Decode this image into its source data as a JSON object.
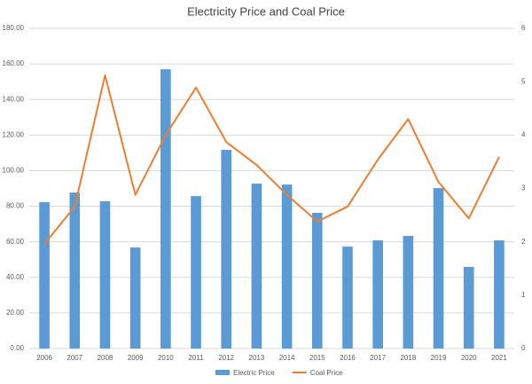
{
  "chart_data": {
    "type": "combo",
    "title": "Electricity Price and Coal Price",
    "categories": [
      "2006",
      "2007",
      "2008",
      "2009",
      "2010",
      "2011",
      "2012",
      "2013",
      "2014",
      "2015",
      "2016",
      "2017",
      "2018",
      "2019",
      "2020",
      "2021"
    ],
    "series": [
      {
        "name": "Electric Price",
        "type": "bar",
        "color": "#5b9bd5",
        "values": [
          82.3,
          87.7,
          82.8,
          56.8,
          157.0,
          85.7,
          111.7,
          92.7,
          92.2,
          76.3,
          57.3,
          60.8,
          63.3,
          90.2,
          45.9,
          60.8
        ]
      },
      {
        "name": "Coal Price",
        "type": "line",
        "axis": "y2",
        "color": "#ed7d31",
        "values": [
          1.96,
          2.66,
          5.12,
          2.88,
          4.0,
          4.89,
          3.87,
          3.44,
          2.88,
          2.38,
          2.66,
          3.54,
          4.3,
          3.12,
          2.44,
          3.59
        ]
      }
    ],
    "ylim": [
      0,
      180
    ],
    "yticks": [
      {
        "value": 0,
        "label": "0.00"
      },
      {
        "value": 20,
        "label": "20.00"
      },
      {
        "value": 40,
        "label": "40.00"
      },
      {
        "value": 60,
        "label": "60.00"
      },
      {
        "value": 80,
        "label": "80.00"
      },
      {
        "value": 100,
        "label": "100.00"
      },
      {
        "value": 120,
        "label": "120.00"
      },
      {
        "value": 140,
        "label": "140.00"
      },
      {
        "value": 160,
        "label": "160.00"
      },
      {
        "value": 180,
        "label": "180.00"
      }
    ],
    "y2lim": [
      0,
      6
    ],
    "y2ticks": [
      0,
      1,
      2,
      3,
      4,
      5,
      6
    ],
    "grid": true,
    "legend": "bottom"
  }
}
